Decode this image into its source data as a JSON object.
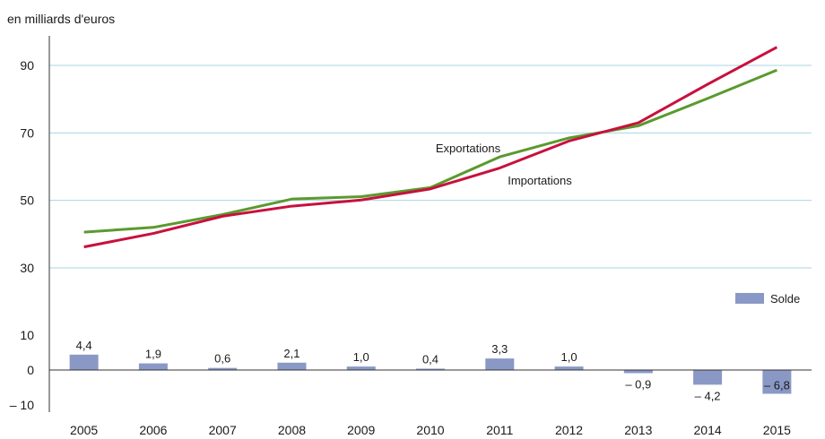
{
  "chart_data": {
    "type": "bar+line",
    "unit_label": "en milliards d'euros",
    "categories": [
      "2005",
      "2006",
      "2007",
      "2008",
      "2009",
      "2010",
      "2011",
      "2012",
      "2013",
      "2014",
      "2015"
    ],
    "series": [
      {
        "name": "Exportations",
        "type": "line",
        "color": "#5a9a2e",
        "values": [
          40.6,
          42.0,
          45.8,
          50.4,
          51.1,
          53.8,
          62.9,
          68.5,
          72.1,
          80.2,
          88.6
        ]
      },
      {
        "name": "Importations",
        "type": "line",
        "color": "#c8103e",
        "values": [
          36.2,
          40.2,
          45.3,
          48.3,
          50.1,
          53.4,
          59.6,
          67.6,
          73.0,
          84.4,
          95.4
        ]
      },
      {
        "name": "Solde",
        "type": "bar",
        "color": "#8a98c6",
        "values": [
          4.4,
          1.9,
          0.6,
          2.1,
          1.0,
          0.4,
          3.3,
          1.0,
          -0.9,
          -4.2,
          -6.8
        ],
        "labels": [
          "4,4",
          "1,9",
          "0,6",
          "2,1",
          "1,0",
          "0,4",
          "3,3",
          "1,0",
          "– 0,9",
          "– 4,2",
          "– 6,8"
        ]
      }
    ],
    "y_ticks": [
      {
        "value": -10,
        "label": "– 10"
      },
      {
        "value": 0,
        "label": "0"
      },
      {
        "value": 10,
        "label": "10"
      },
      {
        "value": 30,
        "label": "30"
      },
      {
        "value": 50,
        "label": "50"
      },
      {
        "value": 70,
        "label": "70"
      },
      {
        "value": 90,
        "label": "90"
      }
    ],
    "gridlines": [
      30,
      50,
      70,
      90
    ],
    "axis_break": {
      "lower_range": [
        -10,
        10
      ],
      "upper_range": [
        20,
        100
      ]
    },
    "legend": {
      "label": "Solde",
      "placement": "right"
    },
    "grid": true
  }
}
